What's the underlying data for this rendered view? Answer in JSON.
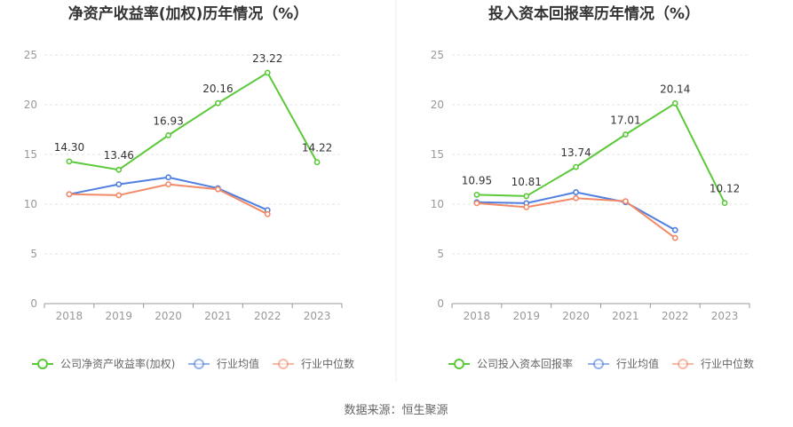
{
  "source_text": "数据来源：恒生聚源",
  "chart_data": [
    {
      "type": "line",
      "title": "净资产收益率(加权)历年情况（%）",
      "categories": [
        "2018",
        "2019",
        "2020",
        "2021",
        "2022",
        "2023"
      ],
      "ylim": [
        0,
        25
      ],
      "yticks": [
        "0",
        "5",
        "10",
        "15",
        "20",
        "25"
      ],
      "grid": true,
      "legend_position": "bottom",
      "series": [
        {
          "name": "公司净资产收益率(加权)",
          "color": "#5cc93a",
          "values": [
            14.3,
            13.46,
            16.93,
            20.16,
            23.22,
            14.22
          ],
          "labels": [
            "14.30",
            "13.46",
            "16.93",
            "20.16",
            "23.22",
            "14.22"
          ]
        },
        {
          "name": "行业均值",
          "color": "#4f7fe0",
          "values": [
            11.0,
            12.0,
            12.7,
            11.6,
            9.4,
            null
          ]
        },
        {
          "name": "行业中位数",
          "color": "#f28a68",
          "values": [
            11.0,
            10.9,
            12.0,
            11.5,
            9.0,
            null
          ]
        }
      ]
    },
    {
      "type": "line",
      "title": "投入资本回报率历年情况（%）",
      "categories": [
        "2018",
        "2019",
        "2020",
        "2021",
        "2022",
        "2023"
      ],
      "ylim": [
        0,
        25
      ],
      "yticks": [
        "0",
        "5",
        "10",
        "15",
        "20",
        "25"
      ],
      "grid": true,
      "legend_position": "bottom",
      "series": [
        {
          "name": "公司投入资本回报率",
          "color": "#5cc93a",
          "values": [
            10.95,
            10.81,
            13.74,
            17.01,
            20.14,
            10.12
          ],
          "labels": [
            "10.95",
            "10.81",
            "13.74",
            "17.01",
            "20.14",
            "10.12"
          ]
        },
        {
          "name": "行业均值",
          "color": "#4f7fe0",
          "values": [
            10.2,
            10.1,
            11.2,
            10.2,
            7.4,
            null
          ]
        },
        {
          "name": "行业中位数",
          "color": "#f28a68",
          "values": [
            10.1,
            9.7,
            10.6,
            10.3,
            6.6,
            null
          ]
        }
      ]
    }
  ]
}
